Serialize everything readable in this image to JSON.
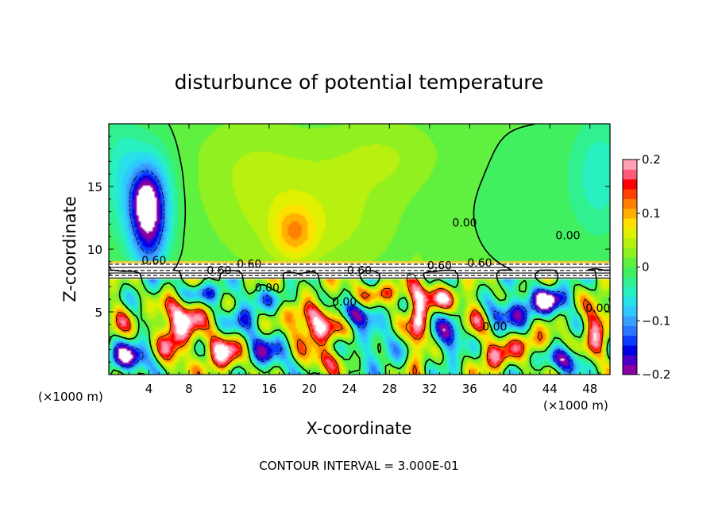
{
  "chart_data": {
    "type": "heatmap",
    "title": "disturbunce of potential temperature",
    "xlabel": "X-coordinate",
    "ylabel": "Z-coordinate",
    "x_unit": "(×1000 m)",
    "x_unit_right": "(×1000 m)",
    "xlim": [
      0,
      50
    ],
    "ylim": [
      0,
      20
    ],
    "x_ticks": [
      4,
      8,
      12,
      16,
      20,
      24,
      28,
      32,
      36,
      40,
      44,
      48
    ],
    "x_tick_labels": [
      "4",
      "8",
      "12",
      "16",
      "20",
      "24",
      "28",
      "32",
      "36",
      "40",
      "44",
      "48"
    ],
    "y_ticks": [
      5,
      10,
      15
    ],
    "y_tick_labels": [
      "5",
      "10",
      "15"
    ],
    "colorbar": {
      "min": -0.2,
      "max": 0.2,
      "ticks": [
        0.2,
        0.1,
        0,
        -0.1,
        -0.2
      ],
      "tick_labels": [
        "0.2",
        "0.1",
        "0",
        "−0.1",
        "−0.2"
      ],
      "colors": [
        "#8a00a0",
        "#4a00c8",
        "#0000e0",
        "#0a3cff",
        "#2a78ff",
        "#3aa0ff",
        "#30c8ff",
        "#28e0e8",
        "#28f0c0",
        "#30f090",
        "#40f060",
        "#60f040",
        "#90f020",
        "#b8f010",
        "#e0f000",
        "#ffe000",
        "#ffb000",
        "#ff8000",
        "#ff4000",
        "#ff0000",
        "#ff5a7a",
        "#ffa0b4"
      ]
    },
    "contour_interval_text": "CONTOUR INTERVAL = 3.000E-01",
    "contour_labels": [
      {
        "text": "0.60",
        "x": 4.5,
        "y": 8.8
      },
      {
        "text": "0.60",
        "x": 11.0,
        "y": 8.0
      },
      {
        "text": "0.60",
        "x": 14.0,
        "y": 8.5
      },
      {
        "text": "0.60",
        "x": 25.0,
        "y": 8.0
      },
      {
        "text": "0.60",
        "x": 33.0,
        "y": 8.4
      },
      {
        "text": "0.60",
        "x": 37.0,
        "y": 8.6
      },
      {
        "text": "0.00",
        "x": 15.8,
        "y": 6.6
      },
      {
        "text": "0.00",
        "x": 23.5,
        "y": 5.5
      },
      {
        "text": "0.00",
        "x": 38.5,
        "y": 3.5
      },
      {
        "text": "0.00",
        "x": 35.5,
        "y": 11.8
      },
      {
        "text": "0.00",
        "x": 45.8,
        "y": 10.8
      },
      {
        "text": "0.00",
        "x": 48.8,
        "y": 5.0
      }
    ],
    "blobs": [
      {
        "x": 4.2,
        "y": 14.5,
        "rx": 2.4,
        "ry": 4.0,
        "v": -0.08
      },
      {
        "x": 4.0,
        "y": 12.0,
        "rx": 1.8,
        "ry": 3.6,
        "v": -0.16
      },
      {
        "x": 3.6,
        "y": 13.8,
        "rx": 1.1,
        "ry": 1.8,
        "v": -0.1
      },
      {
        "x": 1.2,
        "y": 16.0,
        "rx": 2.0,
        "ry": 5.0,
        "v": -0.05
      },
      {
        "x": 20.0,
        "y": 12.5,
        "rx": 8.0,
        "ry": 4.5,
        "v": 0.045
      },
      {
        "x": 18.5,
        "y": 11.3,
        "rx": 2.0,
        "ry": 2.0,
        "v": 0.07
      },
      {
        "x": 14.0,
        "y": 17.0,
        "rx": 6.0,
        "ry": 4.0,
        "v": 0.025
      },
      {
        "x": 42.0,
        "y": 14.0,
        "rx": 8.0,
        "ry": 7.0,
        "v": -0.01
      },
      {
        "x": 49.0,
        "y": 16.0,
        "rx": 3.0,
        "ry": 5.0,
        "v": -0.05
      },
      {
        "x": 27.5,
        "y": 17.5,
        "rx": 6.0,
        "ry": 3.0,
        "v": 0.03
      },
      {
        "x": 2.0,
        "y": 1.3,
        "rx": 2.2,
        "ry": 1.2,
        "v": -0.2
      },
      {
        "x": 6.5,
        "y": 3.5,
        "rx": 1.6,
        "ry": 2.6,
        "v": 0.2
      },
      {
        "x": 8.5,
        "y": 4.8,
        "rx": 1.4,
        "ry": 1.2,
        "v": 0.15
      },
      {
        "x": 11.5,
        "y": 1.8,
        "rx": 2.0,
        "ry": 1.6,
        "v": 0.2
      },
      {
        "x": 13.5,
        "y": 4.5,
        "rx": 1.8,
        "ry": 1.4,
        "v": -0.12
      },
      {
        "x": 16.0,
        "y": 2.0,
        "rx": 2.5,
        "ry": 1.6,
        "v": -0.14
      },
      {
        "x": 20.5,
        "y": 4.0,
        "rx": 3.2,
        "ry": 1.8,
        "v": 0.2
      },
      {
        "x": 24.5,
        "y": 4.8,
        "rx": 2.0,
        "ry": 1.0,
        "v": -0.2
      },
      {
        "x": 26.0,
        "y": 2.0,
        "rx": 3.0,
        "ry": 1.4,
        "v": -0.1
      },
      {
        "x": 30.8,
        "y": 4.0,
        "rx": 0.9,
        "ry": 3.2,
        "v": 0.2
      },
      {
        "x": 34.0,
        "y": 3.0,
        "rx": 1.6,
        "ry": 1.8,
        "v": -0.15
      },
      {
        "x": 36.5,
        "y": 4.8,
        "rx": 1.4,
        "ry": 1.4,
        "v": 0.16
      },
      {
        "x": 40.0,
        "y": 5.0,
        "rx": 3.0,
        "ry": 1.2,
        "v": -0.16
      },
      {
        "x": 42.5,
        "y": 2.5,
        "rx": 2.2,
        "ry": 1.0,
        "v": 0.12
      },
      {
        "x": 45.5,
        "y": 1.2,
        "rx": 2.0,
        "ry": 1.0,
        "v": -0.18
      },
      {
        "x": 48.5,
        "y": 3.5,
        "rx": 1.2,
        "ry": 2.4,
        "v": 0.18
      },
      {
        "x": 9.5,
        "y": 6.5,
        "rx": 3.0,
        "ry": 0.8,
        "v": -0.12
      },
      {
        "x": 28.0,
        "y": 6.5,
        "rx": 4.0,
        "ry": 0.8,
        "v": 0.1
      },
      {
        "x": 18.0,
        "y": 6.0,
        "rx": 3.0,
        "ry": 0.8,
        "v": -0.08
      },
      {
        "x": 33.0,
        "y": 6.0,
        "rx": 2.0,
        "ry": 1.0,
        "v": 0.14
      },
      {
        "x": 1.0,
        "y": 4.5,
        "rx": 1.2,
        "ry": 1.4,
        "v": 0.1
      },
      {
        "x": 22.0,
        "y": 1.2,
        "rx": 2.0,
        "ry": 1.0,
        "v": 0.14
      },
      {
        "x": 38.5,
        "y": 1.5,
        "rx": 1.8,
        "ry": 1.2,
        "v": 0.16
      },
      {
        "x": 44.0,
        "y": 6.0,
        "rx": 2.0,
        "ry": 1.0,
        "v": -0.2
      }
    ]
  }
}
